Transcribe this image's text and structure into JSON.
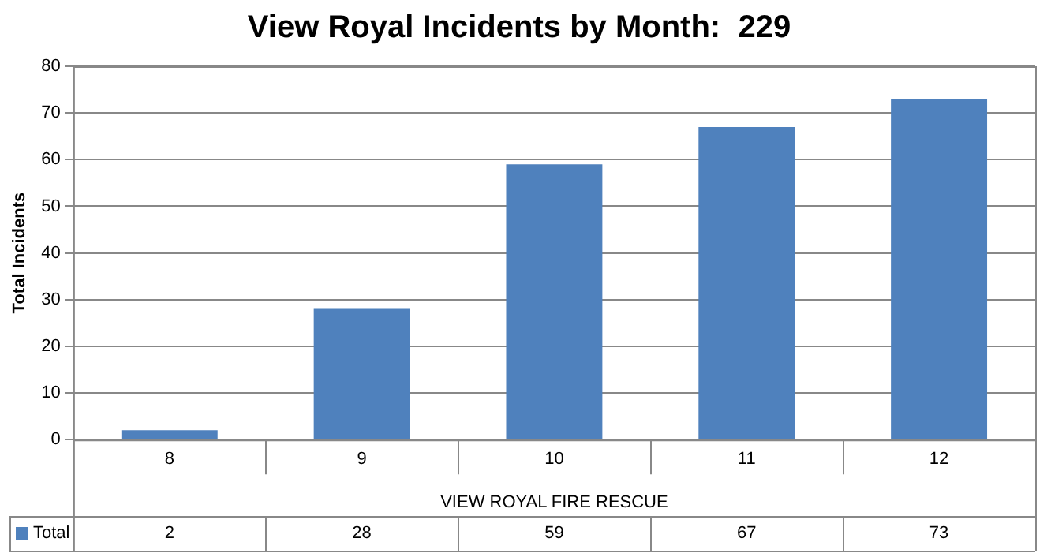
{
  "chart_data": {
    "type": "bar",
    "title": "View Royal Incidents by Month:  229",
    "xlabel": "VIEW ROYAL FIRE RESCUE",
    "ylabel": "Total Incidents",
    "categories": [
      "8",
      "9",
      "10",
      "11",
      "12"
    ],
    "series": [
      {
        "name": "Total",
        "color": "#4f81bd",
        "values": [
          2,
          28,
          59,
          67,
          73
        ]
      }
    ],
    "ylim": [
      0,
      80
    ],
    "yticks": [
      0,
      10,
      20,
      30,
      40,
      50,
      60,
      70,
      80
    ],
    "grid": "y",
    "legend": "bottom left",
    "data_labels": true
  }
}
